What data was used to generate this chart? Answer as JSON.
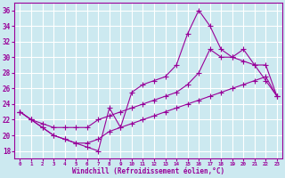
{
  "xlabel": "Windchill (Refroidissement éolien,°C)",
  "bg_color": "#cce9f0",
  "line_color": "#990099",
  "grid_color": "#ffffff",
  "ylim": [
    17,
    37
  ],
  "xlim": [
    -0.5,
    23.5
  ],
  "yticks": [
    18,
    20,
    22,
    24,
    26,
    28,
    30,
    32,
    34,
    36
  ],
  "xticks": [
    0,
    1,
    2,
    3,
    4,
    5,
    6,
    7,
    8,
    9,
    10,
    11,
    12,
    13,
    14,
    15,
    16,
    17,
    18,
    19,
    20,
    21,
    22,
    23
  ],
  "series1_x": [
    0,
    1,
    2,
    3,
    4,
    5,
    6,
    7,
    8,
    9,
    10,
    11,
    12,
    13,
    14,
    15,
    16,
    17,
    18,
    19,
    20,
    21,
    22,
    23
  ],
  "series1_y": [
    23,
    22,
    21,
    20,
    19.5,
    19,
    18.5,
    18,
    23.5,
    21,
    25.5,
    26.5,
    27,
    27.5,
    29,
    33,
    36,
    34,
    31,
    30,
    29.5,
    29,
    27,
    25
  ],
  "series2_x": [
    0,
    1,
    2,
    3,
    4,
    5,
    6,
    7,
    8,
    9,
    10,
    11,
    12,
    13,
    14,
    15,
    16,
    17,
    18,
    19,
    20,
    21,
    22,
    23
  ],
  "series2_y": [
    23,
    22,
    21.5,
    21,
    21,
    21,
    21,
    22,
    22.5,
    23,
    23.5,
    24,
    24.5,
    25,
    25.5,
    26.5,
    28,
    31,
    30,
    30,
    31,
    29,
    29,
    25
  ],
  "series3_x": [
    0,
    1,
    2,
    3,
    4,
    5,
    6,
    7,
    8,
    9,
    10,
    11,
    12,
    13,
    14,
    15,
    16,
    17,
    18,
    19,
    20,
    21,
    22,
    23
  ],
  "series3_y": [
    23,
    22,
    21,
    20,
    19.5,
    19,
    19,
    19.5,
    20.5,
    21,
    21.5,
    22,
    22.5,
    23,
    23.5,
    24,
    24.5,
    25,
    25.5,
    26,
    26.5,
    27,
    27.5,
    25
  ]
}
